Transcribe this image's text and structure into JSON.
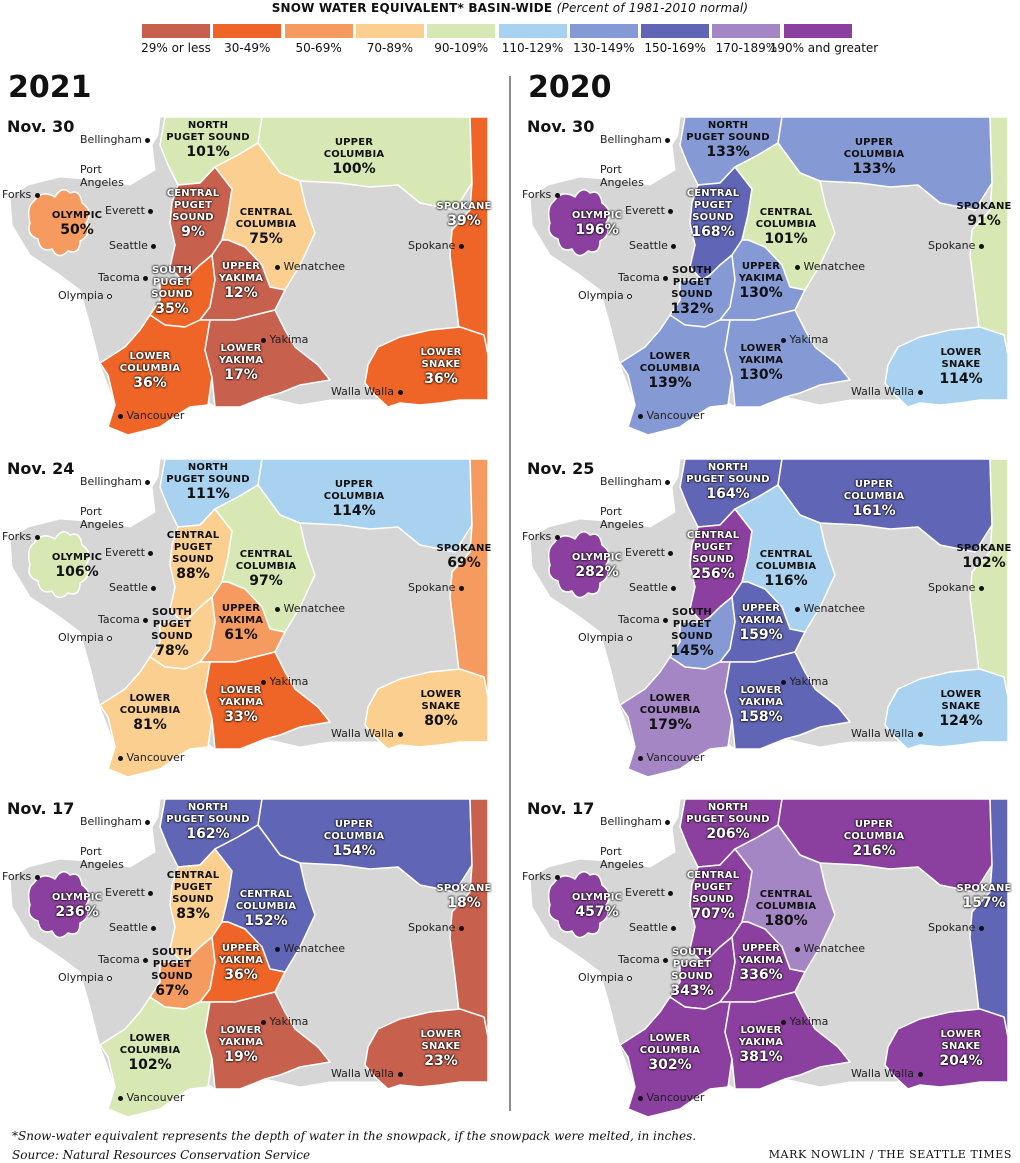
{
  "header": {
    "title": "SNOW WATER EQUIVALENT* BASIN-WIDE",
    "subtitle": "(Percent of 1981-2010 normal)"
  },
  "legend": [
    {
      "label": "29% or less",
      "color": "#c8604e"
    },
    {
      "label": "30-49%",
      "color": "#ef6427"
    },
    {
      "label": "50-69%",
      "color": "#f69b5f"
    },
    {
      "label": "70-89%",
      "color": "#fbcf90"
    },
    {
      "label": "90-109%",
      "color": "#d8e8b4"
    },
    {
      "label": "110-129%",
      "color": "#a8d2ef"
    },
    {
      "label": "130-149%",
      "color": "#8599d5"
    },
    {
      "label": "150-169%",
      "color": "#6065b5"
    },
    {
      "label": "170-189%",
      "color": "#a586c5"
    },
    {
      "label": "190% and greater",
      "color": "#8b3f9e"
    }
  ],
  "columns": [
    {
      "year": "2021"
    },
    {
      "year": "2020"
    }
  ],
  "basin_names": {
    "north_puget": "NORTH PUGET SOUND",
    "upper_columbia": "UPPER COLUMBIA",
    "olympic": "OLYMPIC",
    "central_puget": "CENTRAL PUGET SOUND",
    "central_columbia": "CENTRAL COLUMBIA",
    "spokane": "SPOKANE",
    "south_puget": "SOUTH PUGET SOUND",
    "upper_yakima": "UPPER YAKIMA",
    "lower_columbia": "LOWER COLUMBIA",
    "lower_yakima": "LOWER YAKIMA",
    "lower_snake": "LOWER SNAKE"
  },
  "cities": {
    "bellingham": "Bellingham",
    "port_angeles": "Port Angeles",
    "forks": "Forks",
    "everett": "Everett",
    "seattle": "Seattle",
    "tacoma": "Tacoma",
    "olympia": "Olympia",
    "wenatchee": "Wenatchee",
    "spokane": "Spokane",
    "yakima": "Yakima",
    "walla_walla": "Walla Walla",
    "vancouver": "Vancouver"
  },
  "panels": [
    {
      "year": "2021",
      "date": "Nov. 30",
      "values": {
        "north_puget": "101%",
        "upper_columbia": "100%",
        "olympic": "50%",
        "central_puget": "9%",
        "central_columbia": "75%",
        "spokane": "39%",
        "south_puget": "35%",
        "upper_yakima": "12%",
        "lower_columbia": "36%",
        "lower_yakima": "17%",
        "lower_snake": "36%"
      }
    },
    {
      "year": "2021",
      "date": "Nov. 24",
      "values": {
        "north_puget": "111%",
        "upper_columbia": "114%",
        "olympic": "106%",
        "central_puget": "88%",
        "central_columbia": "97%",
        "spokane": "69%",
        "south_puget": "78%",
        "upper_yakima": "61%",
        "lower_columbia": "81%",
        "lower_yakima": "33%",
        "lower_snake": "80%"
      }
    },
    {
      "year": "2021",
      "date": "Nov. 17",
      "values": {
        "north_puget": "162%",
        "upper_columbia": "154%",
        "olympic": "236%",
        "central_puget": "83%",
        "central_columbia": "152%",
        "spokane": "18%",
        "south_puget": "67%",
        "upper_yakima": "36%",
        "lower_columbia": "102%",
        "lower_yakima": "19%",
        "lower_snake": "23%"
      }
    },
    {
      "year": "2020",
      "date": "Nov. 30",
      "values": {
        "north_puget": "133%",
        "upper_columbia": "133%",
        "olympic": "196%",
        "central_puget": "168%",
        "central_columbia": "101%",
        "spokane": "91%",
        "south_puget": "132%",
        "upper_yakima": "130%",
        "lower_columbia": "139%",
        "lower_yakima": "130%",
        "lower_snake": "114%"
      }
    },
    {
      "year": "2020",
      "date": "Nov. 25",
      "values": {
        "north_puget": "164%",
        "upper_columbia": "161%",
        "olympic": "282%",
        "central_puget": "256%",
        "central_columbia": "116%",
        "spokane": "102%",
        "south_puget": "145%",
        "upper_yakima": "159%",
        "lower_columbia": "179%",
        "lower_yakima": "158%",
        "lower_snake": "124%"
      }
    },
    {
      "year": "2020",
      "date": "Nov. 17",
      "values": {
        "north_puget": "206%",
        "upper_columbia": "216%",
        "olympic": "457%",
        "central_puget": "707%",
        "central_columbia": "180%",
        "spokane": "157%",
        "south_puget": "343%",
        "upper_yakima": "336%",
        "lower_columbia": "302%",
        "lower_yakima": "381%",
        "lower_snake": "204%"
      }
    }
  ],
  "footnote": "*Snow-water equivalent represents the depth of water in the snowpack, if the snowpack were melted, in inches.",
  "source": "Source: Natural Resources Conservation Service",
  "credit": "MARK NOWLIN / THE SEATTLE TIMES"
}
